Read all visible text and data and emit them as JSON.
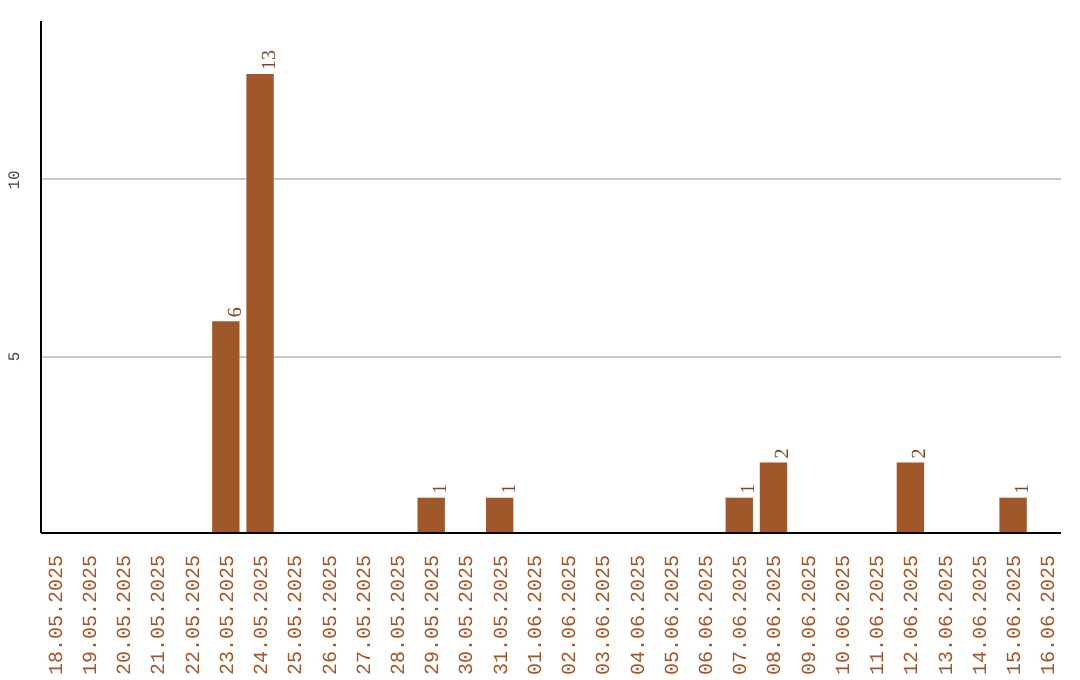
{
  "chart_data": {
    "type": "bar",
    "categories": [
      "18.05.2025",
      "19.05.2025",
      "20.05.2025",
      "21.05.2025",
      "22.05.2025",
      "23.05.2025",
      "24.05.2025",
      "25.05.2025",
      "26.05.2025",
      "27.05.2025",
      "28.05.2025",
      "29.05.2025",
      "30.05.2025",
      "31.05.2025",
      "01.06.2025",
      "02.06.2025",
      "03.06.2025",
      "04.06.2025",
      "05.06.2025",
      "06.06.2025",
      "07.06.2025",
      "08.06.2025",
      "09.06.2025",
      "10.06.2025",
      "11.06.2025",
      "12.06.2025",
      "13.06.2025",
      "14.06.2025",
      "15.06.2025",
      "16.06.2025"
    ],
    "values": [
      0,
      0,
      0,
      0,
      0,
      6,
      13,
      0,
      0,
      0,
      0,
      1,
      0,
      1,
      0,
      0,
      0,
      0,
      0,
      0,
      1,
      2,
      0,
      0,
      0,
      2,
      0,
      0,
      1,
      0
    ],
    "value_labels": [
      null,
      null,
      null,
      null,
      null,
      "6",
      "13",
      null,
      null,
      null,
      null,
      "1",
      null,
      "1",
      null,
      null,
      null,
      null,
      null,
      null,
      "1",
      "2",
      null,
      null,
      null,
      "2",
      null,
      null,
      "1",
      null
    ],
    "color": "#a0572a",
    "ylim": [
      0,
      14.5
    ],
    "yticks": [
      5,
      10
    ],
    "grid": "y"
  }
}
